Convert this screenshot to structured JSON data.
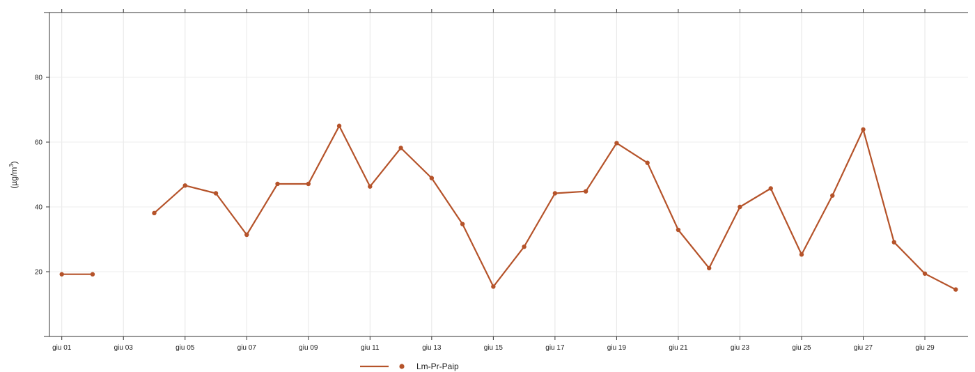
{
  "chart_data": {
    "type": "line",
    "title": "",
    "xlabel": "",
    "ylabel": "(µg/m3)",
    "ylabel_main": "(µg/m",
    "ylabel_sup": "3",
    "ylabel_close": ")",
    "ylim": [
      0,
      100
    ],
    "y_ticks": [
      20,
      40,
      60,
      80
    ],
    "x_tick_labels": [
      "giu 01",
      "giu 03",
      "giu 05",
      "giu 07",
      "giu 09",
      "giu 11",
      "giu 13",
      "giu 15",
      "giu 17",
      "giu 19",
      "giu 21",
      "giu 23",
      "giu 25",
      "giu 27",
      "giu 29"
    ],
    "x_tick_days": [
      1,
      3,
      5,
      7,
      9,
      11,
      13,
      15,
      17,
      19,
      21,
      23,
      25,
      27,
      29
    ],
    "x_range_days": [
      0.6,
      30.4
    ],
    "grid": true,
    "legend_position": "bottom-center",
    "series": [
      {
        "name": "Lm-Pr-Paip",
        "color": "#b5532a",
        "x": [
          1,
          2,
          3,
          4,
          5,
          6,
          7,
          8,
          9,
          10,
          11,
          12,
          13,
          14,
          15,
          16,
          17,
          18,
          19,
          20,
          21,
          22,
          23,
          24,
          25,
          26,
          27,
          28,
          29,
          30
        ],
        "y": [
          19.2,
          19.2,
          null,
          38.1,
          46.6,
          44.2,
          31.4,
          47.1,
          47.1,
          65.0,
          46.3,
          58.2,
          48.9,
          34.7,
          15.4,
          27.7,
          44.2,
          44.8,
          59.7,
          53.6,
          32.9,
          21.1,
          40.0,
          45.7,
          25.3,
          43.5,
          63.9,
          29.1,
          19.4,
          14.5
        ]
      }
    ]
  }
}
